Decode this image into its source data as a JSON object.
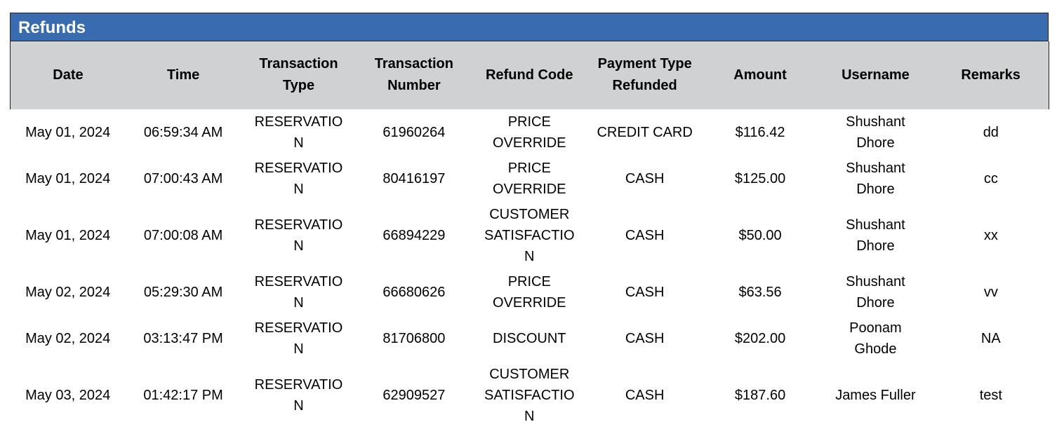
{
  "title": "Refunds",
  "columns": [
    "Date",
    "Time",
    "Transaction Type",
    "Transaction Number",
    "Refund Code",
    "Payment Type Refunded",
    "Amount",
    "Username",
    "Remarks"
  ],
  "rows": [
    [
      "May 01, 2024",
      "06:59:34 AM",
      "RESERVATION",
      "61960264",
      "PRICE OVERRIDE",
      "CREDIT CARD",
      "$116.42",
      "Shushant Dhore",
      "dd"
    ],
    [
      "May 01, 2024",
      "07:00:43 AM",
      "RESERVATION",
      "80416197",
      "PRICE OVERRIDE",
      "CASH",
      "$125.00",
      "Shushant Dhore",
      "cc"
    ],
    [
      "May 01, 2024",
      "07:00:08 AM",
      "RESERVATION",
      "66894229",
      "CUSTOMER SATISFACTION",
      "CASH",
      "$50.00",
      "Shushant Dhore",
      "xx"
    ],
    [
      "May 02, 2024",
      "05:29:30 AM",
      "RESERVATION",
      "66680626",
      "PRICE OVERRIDE",
      "CASH",
      "$63.56",
      "Shushant Dhore",
      "vv"
    ],
    [
      "May 02, 2024",
      "03:13:47 PM",
      "RESERVATION",
      "81706800",
      "DISCOUNT",
      "CASH",
      "$202.00",
      "Poonam Ghode",
      "NA"
    ],
    [
      "May 03, 2024",
      "01:42:17 PM",
      "RESERVATION",
      "62909527",
      "CUSTOMER SATISFACTION",
      "CASH",
      "$187.60",
      "James Fuller",
      "test"
    ]
  ],
  "colors": {
    "title_bar": "#386bb0",
    "header_bg": "#d0d1d3"
  }
}
